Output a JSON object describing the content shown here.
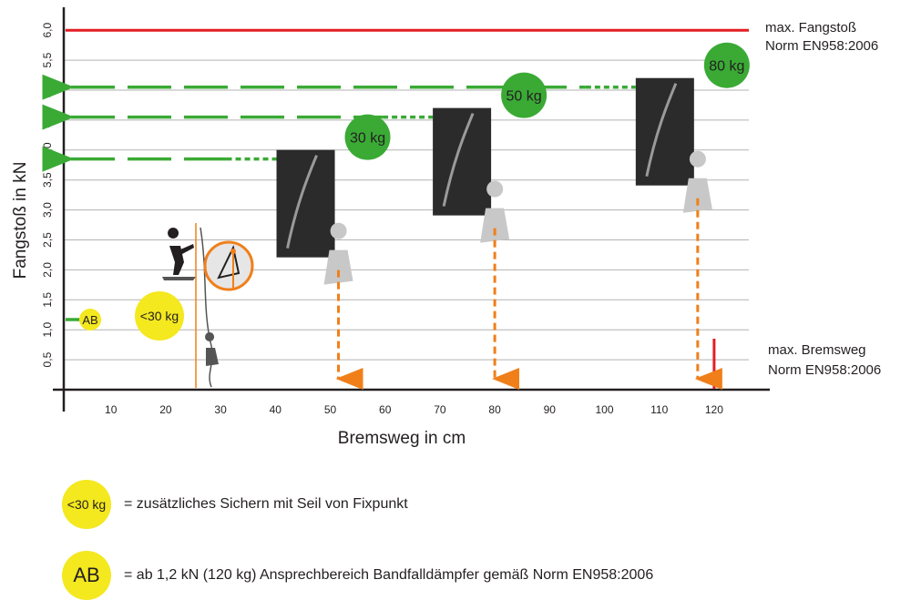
{
  "chart_data": {
    "type": "line",
    "title": "",
    "xlabel": "Bremsweg in cm",
    "ylabel": "Fangstoß in kN",
    "xlim": [
      0,
      125
    ],
    "ylim": [
      0,
      6.3
    ],
    "x_ticks": [
      "10",
      "20",
      "30",
      "40",
      "50",
      "60",
      "70",
      "80",
      "90",
      "100",
      "110",
      "120"
    ],
    "y_ticks": [
      "0,5",
      "1,0",
      "1,5",
      "2,0",
      "2,5",
      "3,0",
      "3,5",
      "4,0",
      "4,5",
      "5,0",
      "5,5",
      "6,0"
    ],
    "grid": true,
    "limits": {
      "max_fangstoss": {
        "y": 6.0,
        "label_line1": "max. Fangstoß",
        "label_line2": "Norm EN958:2006",
        "color": "#e31e24"
      },
      "max_bremsweg": {
        "x": 120,
        "label_line1": "max. Bremsweg",
        "label_line2": "Norm EN958:2006",
        "color": "#e31e24"
      }
    },
    "series": [
      {
        "name": "30 kg",
        "fangstoss_kN": 3.85,
        "bremsweg_cm": 51.5
      },
      {
        "name": "50 kg",
        "fangstoss_kN": 4.55,
        "bremsweg_cm": 80
      },
      {
        "name": "80 kg",
        "fangstoss_kN": 5.05,
        "bremsweg_cm": 117
      }
    ],
    "ab_marker": {
      "label": "AB",
      "y": 1.2
    },
    "small_marker": {
      "label": "<30 kg",
      "x": 25.5
    },
    "colors": {
      "green_badge": "#3aaa35",
      "yellow_badge": "#f4e81f",
      "orange_arrow": "#f07f1a",
      "red_limit": "#e31e24"
    }
  },
  "legend": [
    {
      "badge": "<30 kg",
      "text": "= zusätzliches Sichern mit Seil von Fixpunkt"
    },
    {
      "badge": "AB",
      "text": "= ab 1,2 kN (120 kg) Ansprechbereich Bandfalldämpfer gemäß Norm EN958:2006"
    }
  ]
}
